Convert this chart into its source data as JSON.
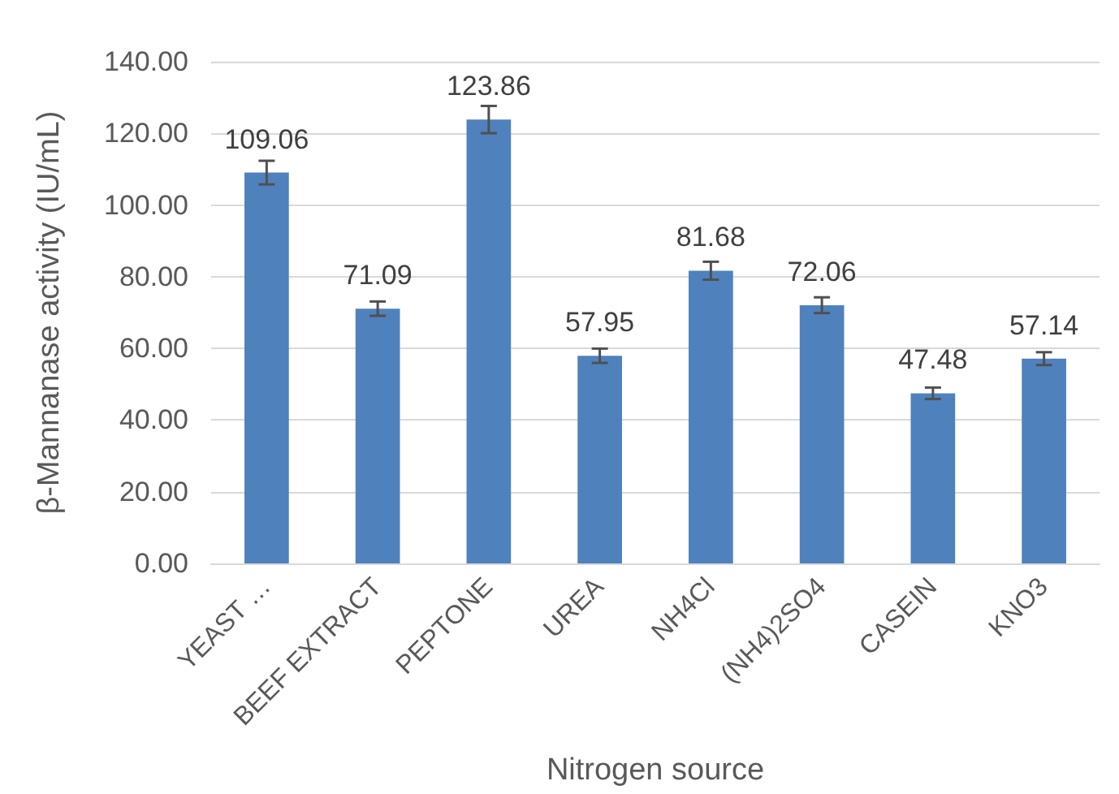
{
  "chart_data": {
    "type": "bar",
    "xlabel": "Nitrogen source",
    "ylabel": "β-Mannanase activity (IU/mL)",
    "categories": [
      "YEAST …",
      "BEEF EXTRACT",
      "PEPTONE",
      "UREA",
      "NH4Cl",
      "(NH4)2SO4",
      "CASEIN",
      "KNO3"
    ],
    "values": [
      109.06,
      71.09,
      123.86,
      57.95,
      81.68,
      72.06,
      47.48,
      57.14
    ],
    "errors": [
      3.3,
      2,
      3.8,
      2,
      2.5,
      2.2,
      1.6,
      1.8
    ],
    "color": "#4f81bd",
    "data_labels": true,
    "grid": "y",
    "ylim": [
      0,
      140
    ],
    "yticks": [
      {
        "value": 0,
        "label": "0.00"
      },
      {
        "value": 20,
        "label": "20.00"
      },
      {
        "value": 40,
        "label": "40.00"
      },
      {
        "value": 60,
        "label": "60.00"
      },
      {
        "value": 80,
        "label": "80.00"
      },
      {
        "value": 100,
        "label": "100.00"
      },
      {
        "value": 120,
        "label": "120.00"
      },
      {
        "value": 140,
        "label": "140.00"
      }
    ]
  }
}
